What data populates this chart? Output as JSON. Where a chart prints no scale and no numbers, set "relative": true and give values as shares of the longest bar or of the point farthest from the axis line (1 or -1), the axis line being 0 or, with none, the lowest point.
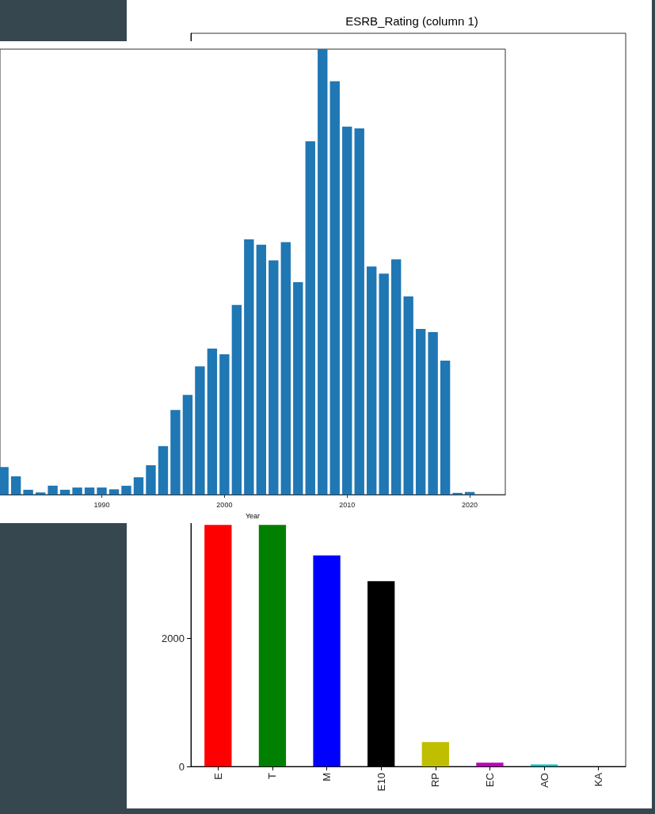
{
  "chart_data": [
    {
      "type": "bar",
      "xlabel": "Year",
      "relative": true,
      "color": "#1f77b4",
      "x": [
        1982,
        1983,
        1984,
        1985,
        1986,
        1987,
        1988,
        1989,
        1990,
        1991,
        1992,
        1993,
        1994,
        1995,
        1996,
        1997,
        1998,
        1999,
        2000,
        2001,
        2002,
        2003,
        2004,
        2005,
        2006,
        2007,
        2008,
        2009,
        2010,
        2011,
        2012,
        2013,
        2014,
        2015,
        2016,
        2017,
        2018,
        2019,
        2020
      ],
      "values": [
        0.062,
        0.041,
        0.011,
        0.005,
        0.02,
        0.011,
        0.016,
        0.016,
        0.016,
        0.012,
        0.02,
        0.039,
        0.066,
        0.109,
        0.19,
        0.224,
        0.288,
        0.328,
        0.315,
        0.426,
        0.573,
        0.561,
        0.526,
        0.567,
        0.477,
        0.793,
        1,
        0.928,
        0.826,
        0.822,
        0.512,
        0.496,
        0.528,
        0.445,
        0.372,
        0.365,
        0.301,
        0.004,
        0.006
      ],
      "xlim": [
        1981.7,
        2022.9
      ],
      "xticks": [
        1990,
        2000,
        2010,
        2020
      ],
      "grid": false
    },
    {
      "type": "bar",
      "title": "ESRB_Rating (column 1)",
      "categories": [
        "E",
        "T",
        "M",
        "E10",
        "RP",
        "EC",
        "AO",
        "KA"
      ],
      "values": [
        3780,
        3780,
        3300,
        2900,
        380,
        60,
        30,
        0
      ],
      "colors": [
        "#ff0000",
        "#008000",
        "#0000ff",
        "#000000",
        "#bfbf00",
        "#bf00bf",
        "#00bfbf",
        "#1f77b4"
      ],
      "ylim": [
        0,
        11470
      ],
      "yticks": [
        0,
        2000
      ],
      "grid": false
    }
  ]
}
